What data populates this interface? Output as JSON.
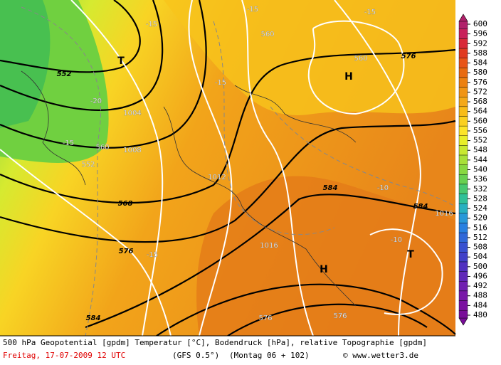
{
  "map": {
    "contour_labels": [
      "552",
      "-15",
      "-15",
      "-15",
      "560",
      "560",
      "576",
      "H",
      "T",
      "-15",
      "-20",
      "1004",
      "-15",
      "560",
      "1008",
      "552",
      "1012",
      "568",
      "584",
      "-10",
      "584",
      "1016",
      "-10",
      "T",
      "576",
      "-15",
      "1016",
      "H",
      "584",
      "576",
      "576"
    ]
  },
  "colorbar": {
    "labels": [
      600,
      596,
      592,
      588,
      584,
      580,
      576,
      572,
      568,
      564,
      560,
      556,
      552,
      548,
      544,
      540,
      536,
      532,
      528,
      524,
      520,
      516,
      512,
      508,
      504,
      500,
      496,
      492,
      488,
      484,
      480
    ],
    "colors": [
      "#b0206a",
      "#c8205a",
      "#d82838",
      "#e03a20",
      "#e85418",
      "#e86a10",
      "#ec8010",
      "#f09414",
      "#f4a818",
      "#f8bc18",
      "#fad020",
      "#fce428",
      "#e8ee28",
      "#c8e830",
      "#a8e038",
      "#88d840",
      "#68d050",
      "#48c870",
      "#30c098",
      "#28b0c0",
      "#2898d8",
      "#2880e0",
      "#3068d8",
      "#3850d0",
      "#4040c8",
      "#5030c0",
      "#6028b8",
      "#7020b0",
      "#7818a8",
      "#7a10a0",
      "#780c98"
    ]
  },
  "footer": {
    "line1": "500 hPa Geopotential [gpdm] Temperatur [°C], Bodendruck [hPa], relative Topographie [gpdm]",
    "date": "Freitag, 17-07-2009  12 UTC",
    "model": "(GFS 0.5°)",
    "run": "(Montag 06 + 102)",
    "copyright": "© www.wetter3.de"
  }
}
